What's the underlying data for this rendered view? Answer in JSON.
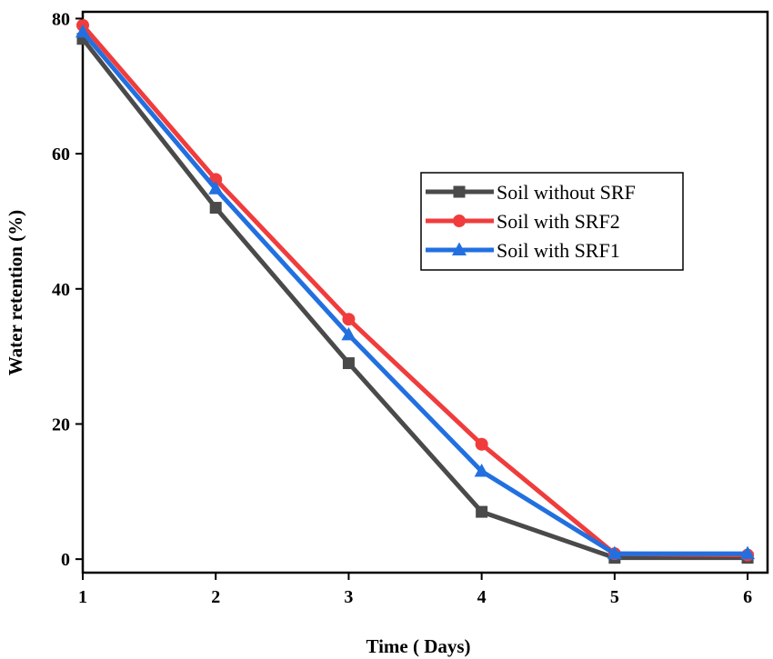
{
  "chart_data": {
    "type": "line",
    "title": "",
    "xlabel": "Time ( Days)",
    "ylabel": "Water retention (%)",
    "xlim": [
      1,
      6.15
    ],
    "ylim": [
      -2,
      81
    ],
    "x_ticks": [
      1,
      2,
      3,
      4,
      5,
      6
    ],
    "x_tick_labels": [
      "1",
      "2",
      "3",
      "4",
      "5",
      "6"
    ],
    "y_ticks": [
      0,
      20,
      40,
      60,
      80
    ],
    "y_tick_labels": [
      "0",
      "20",
      "40",
      "60",
      "80"
    ],
    "grid": false,
    "legend_position": "center-right",
    "x": [
      1,
      2,
      3,
      4,
      5,
      6
    ],
    "series": [
      {
        "name": "Soil without SRF",
        "values": [
          77,
          52,
          29,
          7,
          0.2,
          0.2
        ],
        "color": "#4a4a4a",
        "marker": "square"
      },
      {
        "name": "Soil with SRF2",
        "values": [
          79,
          56.2,
          35.5,
          17,
          0.8,
          0.6
        ],
        "color": "#f03c3c",
        "marker": "circle"
      },
      {
        "name": "Soil with SRF1",
        "values": [
          78,
          54.8,
          33.2,
          13,
          0.8,
          0.8
        ],
        "color": "#2270e0",
        "marker": "triangle"
      }
    ]
  }
}
